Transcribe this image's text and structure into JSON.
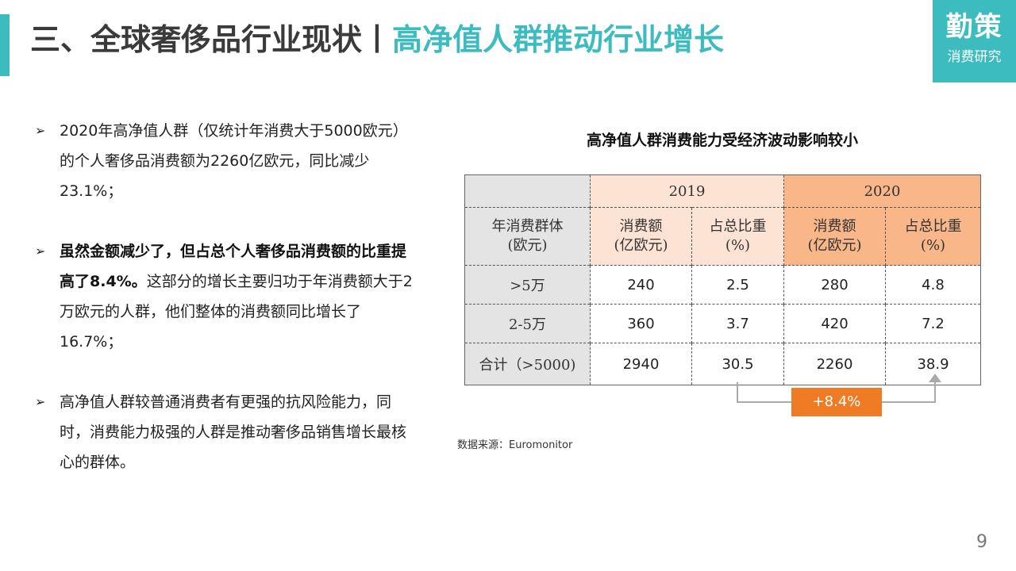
{
  "header": {
    "title_main": "三、全球奢侈品行业现状",
    "title_sep": "丨",
    "title_accent": "高净值人群推动行业增长"
  },
  "logo": {
    "main": "勤策",
    "sub": "消费研究"
  },
  "bullets": [
    {
      "text": "2020年高净值人群（仅统计年消费大于5000欧元）的个人奢侈品消费额为2260亿欧元，同比减少23.1%；"
    },
    {
      "bold": "虽然金额减少了，但占总个人奢侈品消费额的比重提高了8.4%。",
      "text": "这部分的增长主要归功于年消费额大于2万欧元的人群，他们整体的消费额同比增长了16.7%；"
    },
    {
      "text": "高净值人群较普通消费者有更强的抗风险能力，同时，消费能力极强的人群是推动奢侈品销售增长最核心的群体。"
    }
  ],
  "chart_data": {
    "type": "table",
    "title": "高净值人群消费能力受经济波动影响较小",
    "years": [
      "2019",
      "2020"
    ],
    "row_header": "年消费群体(欧元)",
    "col_amount": "消费额(亿欧元)",
    "col_share": "占总比重(%)",
    "header_lines": {
      "group": [
        "年消费群体",
        "(欧元)"
      ],
      "amount": [
        "消费额",
        "(亿欧元)"
      ],
      "share": [
        "占总比重",
        "(%)"
      ]
    },
    "rows": [
      {
        "group": ">5万",
        "amount_2019": "240",
        "share_2019": "2.5",
        "amount_2020": "280",
        "share_2020": "4.8"
      },
      {
        "group": "2-5万",
        "amount_2019": "360",
        "share_2019": "3.7",
        "amount_2020": "420",
        "share_2020": "7.2"
      },
      {
        "group": "合计（>5000)",
        "amount_2019": "2940",
        "share_2019": "30.5",
        "amount_2020": "2260",
        "share_2020": "38.9"
      }
    ],
    "change_label": "+8.4%",
    "colors": {
      "header_gray": "#e4e4e4",
      "year_2019": "#fde3d4",
      "year_2020": "#f9b689",
      "badge": "#f07b25"
    }
  },
  "source": "数据来源：Euromonitor",
  "page_number": "9"
}
